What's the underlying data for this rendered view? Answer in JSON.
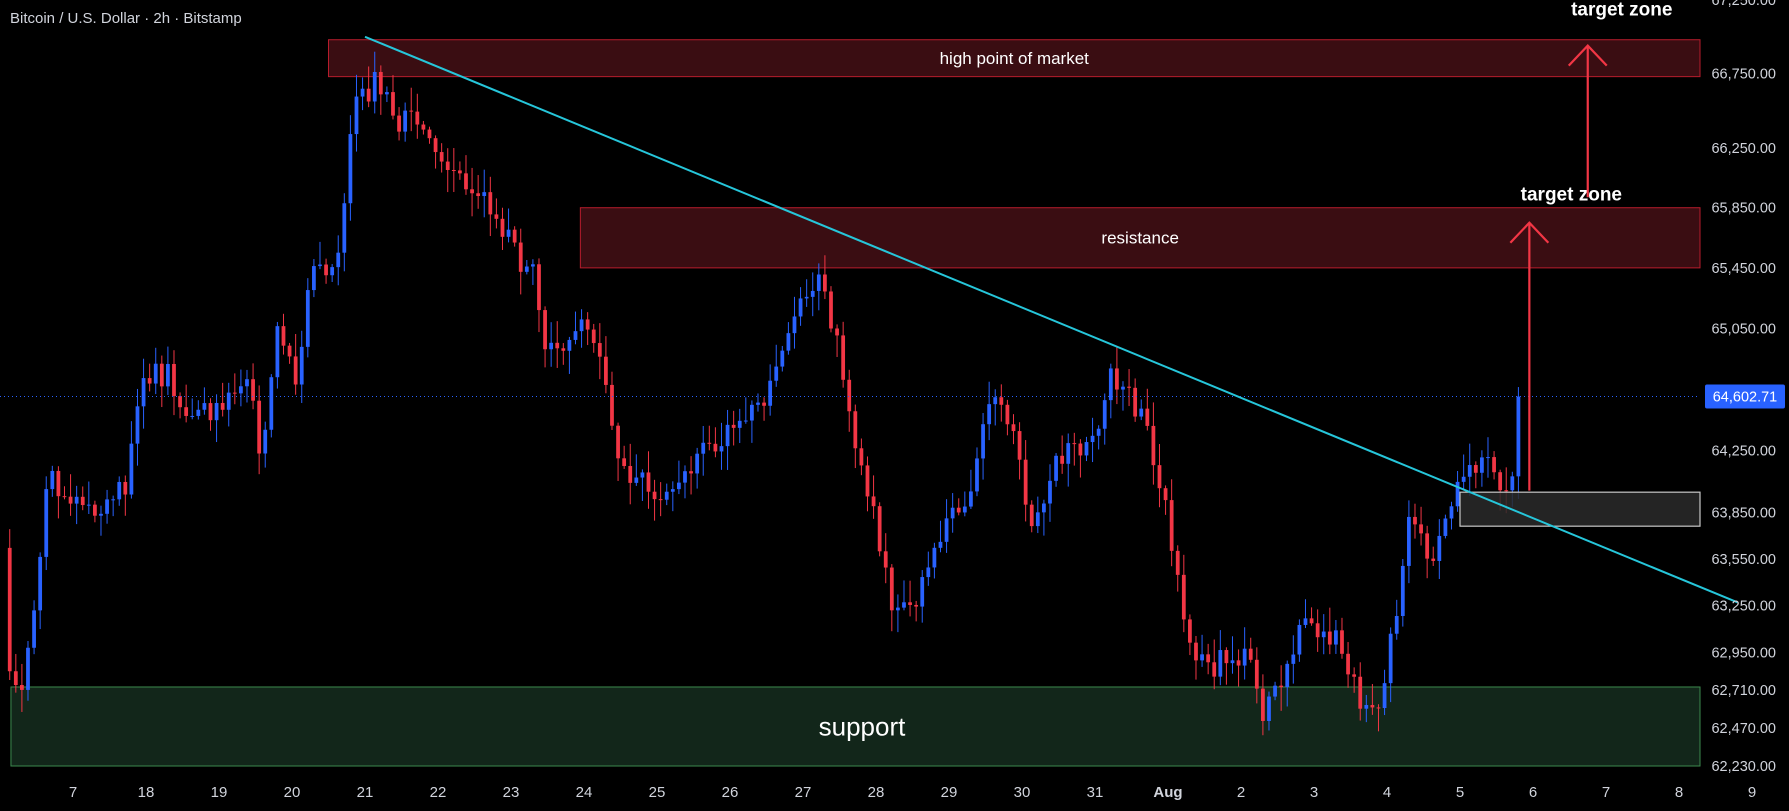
{
  "header": {
    "title": "Bitcoin / U.S. Dollar · 2h · Bitstamp"
  },
  "colors": {
    "up": "#2962ff",
    "down": "#f23645",
    "trendline": "#26c6da",
    "zone_red_fill": "#3a0d12",
    "zone_red_border": "#b71c2c",
    "zone_green_fill": "#12261a",
    "zone_green_border": "#3c8a4e",
    "entry_fill": "#2a2a2a",
    "entry_border": "#c8c8c8",
    "arrow": "#f23645",
    "price_tag": "#2962ff"
  },
  "chart_data": {
    "type": "candlestick",
    "title": "Bitcoin / U.S. Dollar · 2h · Bitstamp",
    "ylim": [
      62230,
      67250
    ],
    "yscale": "log",
    "y_ticks": [
      {
        "value": 62230,
        "label": "62,230.00"
      },
      {
        "value": 62470,
        "label": "62,470.00"
      },
      {
        "value": 62710,
        "label": "62,710.00"
      },
      {
        "value": 62950,
        "label": "62,950.00"
      },
      {
        "value": 63250,
        "label": "63,250.00"
      },
      {
        "value": 63550,
        "label": "63,550.00"
      },
      {
        "value": 63850,
        "label": "63,850.00"
      },
      {
        "value": 64250,
        "label": "64,250.00"
      },
      {
        "value": 64650,
        "label": "64,650.00"
      },
      {
        "value": 65050,
        "label": "65,050.00"
      },
      {
        "value": 65450,
        "label": "65,450.00"
      },
      {
        "value": 65850,
        "label": "65,850.00"
      },
      {
        "value": 66250,
        "label": "66,250.00"
      },
      {
        "value": 66750,
        "label": "66,750.00"
      },
      {
        "value": 67250,
        "label": "67,250.00"
      }
    ],
    "x_ticks": [
      {
        "t": 0,
        "label": "7"
      },
      {
        "t": 1,
        "label": "18"
      },
      {
        "t": 2,
        "label": "19"
      },
      {
        "t": 3,
        "label": "20"
      },
      {
        "t": 4,
        "label": "21"
      },
      {
        "t": 5,
        "label": "22"
      },
      {
        "t": 6,
        "label": "23"
      },
      {
        "t": 7,
        "label": "24"
      },
      {
        "t": 8,
        "label": "25"
      },
      {
        "t": 9,
        "label": "26"
      },
      {
        "t": 10,
        "label": "27"
      },
      {
        "t": 11,
        "label": "28"
      },
      {
        "t": 12,
        "label": "29"
      },
      {
        "t": 13,
        "label": "30"
      },
      {
        "t": 14,
        "label": "31"
      },
      {
        "t": 15,
        "label": "Aug",
        "bold": true
      },
      {
        "t": 16,
        "label": "2"
      },
      {
        "t": 17,
        "label": "3"
      },
      {
        "t": 18,
        "label": "4"
      },
      {
        "t": 19,
        "label": "5"
      },
      {
        "t": 20,
        "label": "6"
      },
      {
        "t": 21,
        "label": "7"
      },
      {
        "t": 22,
        "label": "8"
      },
      {
        "t": 23,
        "label": "9"
      }
    ],
    "x_range": [
      -0.9,
      24.4
    ],
    "current_price": {
      "value": 64602.71,
      "label": "64,602.71"
    },
    "anchors": [
      [
        -0.95,
        63620
      ],
      [
        -0.85,
        62780
      ],
      [
        -0.7,
        62700
      ],
      [
        -0.5,
        63300
      ],
      [
        -0.35,
        64150
      ],
      [
        -0.1,
        63950
      ],
      [
        0.3,
        63900
      ],
      [
        0.7,
        64000
      ],
      [
        1.0,
        64750
      ],
      [
        1.3,
        64750
      ],
      [
        1.6,
        64450
      ],
      [
        2.0,
        64500
      ],
      [
        2.4,
        64700
      ],
      [
        2.6,
        64150
      ],
      [
        2.8,
        65050
      ],
      [
        3.05,
        64650
      ],
      [
        3.3,
        65550
      ],
      [
        3.6,
        65350
      ],
      [
        3.85,
        66500
      ],
      [
        4.15,
        66700
      ],
      [
        4.45,
        66400
      ],
      [
        4.7,
        66500
      ],
      [
        4.95,
        66150
      ],
      [
        5.3,
        66000
      ],
      [
        5.6,
        65950
      ],
      [
        6.0,
        65600
      ],
      [
        6.3,
        65400
      ],
      [
        6.5,
        64900
      ],
      [
        6.8,
        65000
      ],
      [
        6.95,
        65100
      ],
      [
        7.2,
        64950
      ],
      [
        7.45,
        64200
      ],
      [
        7.7,
        64100
      ],
      [
        8.0,
        64000
      ],
      [
        8.4,
        64150
      ],
      [
        8.8,
        64300
      ],
      [
        9.1,
        64450
      ],
      [
        9.4,
        64500
      ],
      [
        9.75,
        64950
      ],
      [
        10.0,
        65200
      ],
      [
        10.2,
        65350
      ],
      [
        10.5,
        64950
      ],
      [
        10.75,
        64150
      ],
      [
        11.0,
        63800
      ],
      [
        11.25,
        63200
      ],
      [
        11.6,
        63300
      ],
      [
        11.85,
        63700
      ],
      [
        12.1,
        63850
      ],
      [
        12.35,
        64100
      ],
      [
        12.6,
        64600
      ],
      [
        12.85,
        64450
      ],
      [
        13.15,
        63750
      ],
      [
        13.45,
        64200
      ],
      [
        13.75,
        64250
      ],
      [
        13.95,
        64300
      ],
      [
        14.2,
        64750
      ],
      [
        14.5,
        64600
      ],
      [
        14.75,
        64300
      ],
      [
        14.95,
        63950
      ],
      [
        15.25,
        63100
      ],
      [
        15.55,
        62850
      ],
      [
        15.8,
        62900
      ],
      [
        16.05,
        62950
      ],
      [
        16.3,
        62550
      ],
      [
        16.55,
        62750
      ],
      [
        16.85,
        63200
      ],
      [
        17.1,
        63100
      ],
      [
        17.35,
        63050
      ],
      [
        17.55,
        62750
      ],
      [
        17.7,
        62600
      ],
      [
        17.85,
        62500
      ],
      [
        18.1,
        63150
      ],
      [
        18.3,
        63800
      ],
      [
        18.55,
        63600
      ],
      [
        18.75,
        63650
      ],
      [
        19.0,
        64050
      ],
      [
        19.3,
        64200
      ],
      [
        19.55,
        64000
      ],
      [
        19.75,
        64150
      ],
      [
        19.85,
        64602.71
      ]
    ]
  },
  "annotations": {
    "high_zone": {
      "label": "high point of market",
      "t0": 3.5,
      "t1": 24.6,
      "top": 66980,
      "bottom": 66730
    },
    "resistance": {
      "label": "resistance",
      "t0": 6.95,
      "t1": 24.6,
      "top": 65850,
      "bottom": 65450
    },
    "support": {
      "label": "support",
      "t0": -0.85,
      "t1": 24.6,
      "top": 62730,
      "bottom": 62230
    },
    "entry": {
      "t0": 19.0,
      "t1": 24.6,
      "top": 63980,
      "bottom": 63760
    },
    "trendline": {
      "t0": 4.0,
      "p0": 67000,
      "t1": 22.8,
      "p1": 63270
    },
    "arrows": [
      {
        "label": "target zone",
        "t": 19.95,
        "from": 63990,
        "to": 65750
      },
      {
        "label": "target zone",
        "t": 20.75,
        "from": 65920,
        "to": 66940
      }
    ]
  }
}
